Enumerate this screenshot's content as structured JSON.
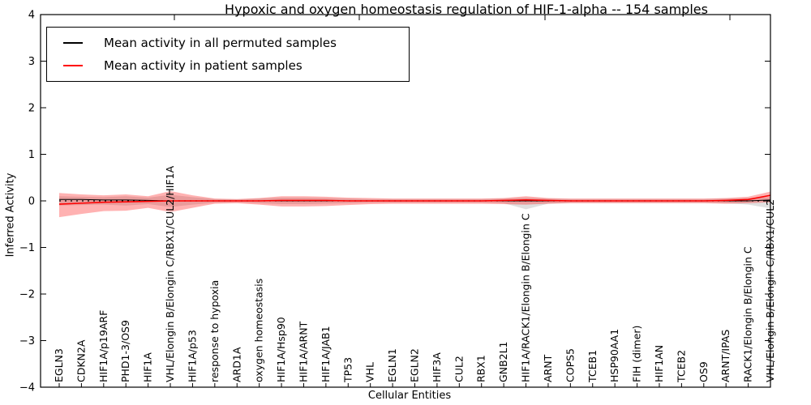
{
  "title": "Hypoxic and oxygen homeostasis regulation of HIF-1-alpha -- 154 samples",
  "legend": {
    "items": [
      {
        "label": "Mean activity in all permuted samples",
        "color": "#000000"
      },
      {
        "label": "Mean activity in patient samples",
        "color": "#ff0000"
      }
    ]
  },
  "chart_data": {
    "type": "line",
    "title": "Hypoxic and oxygen homeostasis regulation of HIF-1-alpha -- 154 samples",
    "xlabel": "Cellular Entities",
    "ylabel": "Inferred Activity",
    "ylim": [
      -4,
      4
    ],
    "yticks": [
      4,
      3,
      2,
      1,
      0,
      -1,
      -2,
      -3,
      -4
    ],
    "grid": false,
    "legend_position": "upper left",
    "zero_line": {
      "style": "dotted",
      "color": "#000000",
      "y": 0
    },
    "categories": [
      "EGLN3",
      "CDKN2A",
      "HIF1A/p19ARF",
      "PHD1-3/OS9",
      "HIF1A",
      "VHL/Elongin B/Elongin C/RBX1/CUL2/HIF1A",
      "HIF1A/p53",
      "response to hypoxia",
      "ARD1A",
      "oxygen homeostasis",
      "HIF1A/Hsp90",
      "HIF1A/ARNT",
      "HIF1A/JAB1",
      "TP53",
      "VHL",
      "EGLN1",
      "EGLN2",
      "HIF3A",
      "CUL2",
      "RBX1",
      "GNB2L1",
      "HIF1A/RACK1/Elongin B/Elongin C",
      "ARNT",
      "COPS5",
      "TCEB1",
      "HSP90AA1",
      "FIH (dimer)",
      "HIF1AN",
      "TCEB2",
      "OS9",
      "ARNT/IPAS",
      "RACK1/Elongin B/Elongin C",
      "VHL/Elongin B/Elongin C/RBX1/CUL2"
    ],
    "series": [
      {
        "name": "Mean activity in all permuted samples",
        "color": "#000000",
        "line_style": "solid-with-dots",
        "values": [
          0.03,
          0.03,
          0.02,
          0.02,
          0.01,
          0,
          0,
          0,
          0,
          0,
          0,
          0,
          0,
          0,
          0,
          0,
          0,
          0,
          0,
          0,
          0,
          0,
          0,
          0,
          0,
          0,
          0,
          0,
          0,
          0,
          0,
          0,
          0.02
        ],
        "band_high": [
          0.1,
          0.09,
          0.08,
          0.1,
          0.07,
          0.13,
          0.08,
          0.04,
          0.03,
          0.05,
          0.07,
          0.07,
          0.06,
          0.05,
          0.04,
          0.04,
          0.04,
          0.04,
          0.04,
          0.04,
          0.05,
          0.07,
          0.05,
          0.04,
          0.04,
          0.04,
          0.04,
          0.04,
          0.04,
          0.04,
          0.05,
          0.06,
          0.08
        ],
        "band_low": [
          -0.1,
          -0.09,
          -0.08,
          -0.1,
          -0.07,
          -0.13,
          -0.08,
          -0.04,
          -0.03,
          -0.05,
          -0.07,
          -0.07,
          -0.06,
          -0.05,
          -0.04,
          -0.04,
          -0.04,
          -0.04,
          -0.04,
          -0.04,
          -0.05,
          -0.18,
          -0.06,
          -0.04,
          -0.04,
          -0.04,
          -0.04,
          -0.04,
          -0.04,
          -0.04,
          -0.05,
          -0.08,
          -0.16
        ],
        "band_color": "#999999",
        "band_opacity": 0.3
      },
      {
        "name": "Mean activity in patient samples",
        "color": "#ff0000",
        "line_style": "solid",
        "values": [
          -0.07,
          -0.05,
          -0.03,
          -0.02,
          -0.01,
          0,
          0,
          0,
          0,
          0,
          0.01,
          0.01,
          0.01,
          0,
          0,
          0,
          0,
          0,
          0,
          0,
          0.01,
          0.02,
          0.01,
          0,
          0,
          0,
          0,
          0,
          0,
          0,
          0.01,
          0.03,
          0.12
        ],
        "band_high": [
          0.17,
          0.14,
          0.12,
          0.14,
          0.1,
          0.21,
          0.12,
          0.05,
          0.04,
          0.06,
          0.1,
          0.1,
          0.09,
          0.07,
          0.06,
          0.05,
          0.05,
          0.05,
          0.05,
          0.05,
          0.06,
          0.1,
          0.06,
          0.05,
          0.05,
          0.05,
          0.05,
          0.05,
          0.05,
          0.05,
          0.06,
          0.09,
          0.2
        ],
        "band_low": [
          -0.35,
          -0.28,
          -0.22,
          -0.21,
          -0.15,
          -0.24,
          -0.15,
          -0.06,
          -0.05,
          -0.08,
          -0.12,
          -0.12,
          -0.11,
          -0.09,
          -0.07,
          -0.06,
          -0.06,
          -0.06,
          -0.06,
          -0.06,
          -0.07,
          -0.08,
          -0.06,
          -0.05,
          -0.05,
          -0.05,
          -0.05,
          -0.05,
          -0.05,
          -0.05,
          -0.06,
          -0.05,
          -0.03
        ],
        "band_color": "#ff0000",
        "band_opacity": 0.3
      }
    ]
  }
}
